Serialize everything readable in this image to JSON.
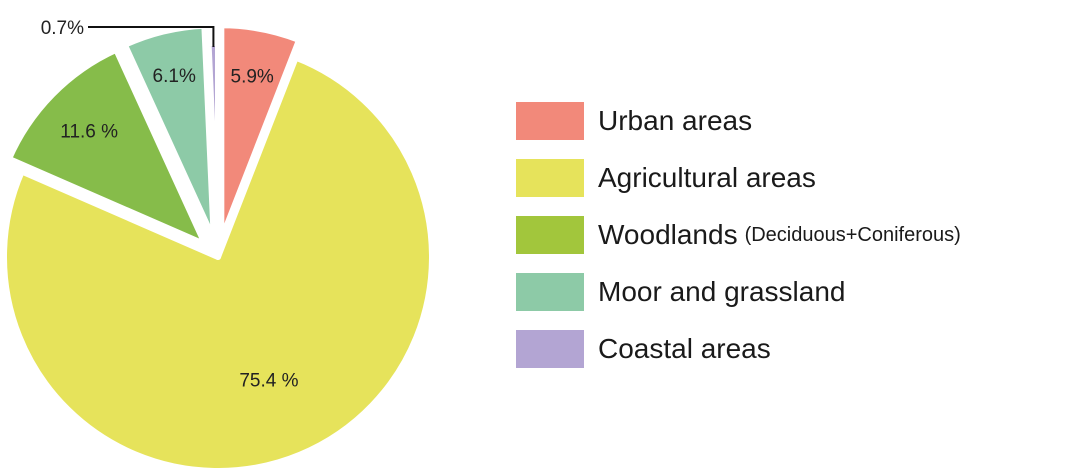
{
  "chart_data": {
    "type": "pie",
    "categories": [
      "Urban areas",
      "Agricultural areas",
      "Woodlands",
      "Moor and grassland",
      "Coastal areas"
    ],
    "values": [
      5.9,
      75.4,
      11.6,
      6.1,
      0.7
    ],
    "data_labels": [
      "5.9%",
      "75.4 %",
      "11.6 %",
      "6.1%",
      "0.7%"
    ],
    "colors": [
      "#F2897A",
      "#E6E35B",
      "#86BC4A",
      "#8DCAA7",
      "#B3A5D3"
    ],
    "legend": [
      {
        "label": "Urban areas",
        "note": "",
        "color": "#F2897A"
      },
      {
        "label": "Agricultural areas",
        "note": "",
        "color": "#E6E35B"
      },
      {
        "label": "Woodlands",
        "note": "(Deciduous+Coniferous)",
        "color": "#A2C63C"
      },
      {
        "label": "Moor and grassland",
        "note": "",
        "color": "#8DCAA7"
      },
      {
        "label": "Coastal areas",
        "note": "",
        "color": "#B3A5D3"
      }
    ],
    "exploded": [
      "Urban areas",
      "Woodlands",
      "Moor and grassland"
    ],
    "start": "12 o'clock, clockwise",
    "legend_position": "right"
  }
}
